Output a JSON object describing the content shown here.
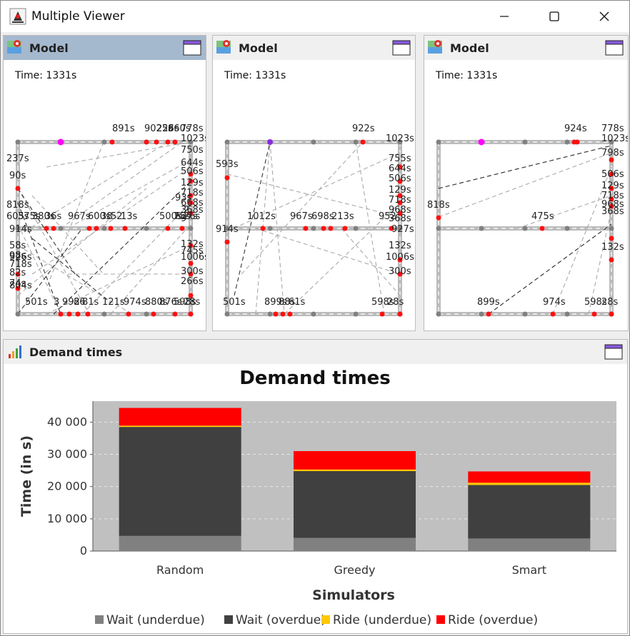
{
  "window": {
    "title": "Multiple Viewer",
    "icon": "java-duke-icon",
    "controls": [
      "minimize-icon",
      "maximize-icon",
      "close-icon"
    ]
  },
  "model_frames": [
    {
      "title": "Model",
      "time": "Time: 1331s",
      "active": true,
      "labels": [
        "891s",
        "9025s",
        "226s",
        "860s",
        "778s",
        "1023s",
        "237s",
        "90s",
        "818s",
        "605s",
        "375s",
        "380s",
        "36s",
        "967s",
        "600s",
        "38",
        "52",
        "13s",
        "500s",
        "75s",
        "26s",
        "93s",
        "627s",
        "914s",
        "58s",
        "98s",
        "926s",
        "718s",
        "82s",
        "74s",
        "804s",
        "750s",
        "644s",
        "506s",
        "129s",
        "718s",
        "668s",
        "368s",
        "9",
        "2",
        "132s",
        "745s",
        "1006s",
        "300s",
        "266s",
        "501s",
        "3",
        "992",
        "86",
        "81s",
        "121s",
        "974s",
        "880s",
        "876s",
        "598s",
        "28s"
      ]
    },
    {
      "title": "Model",
      "time": "Time: 1331s",
      "active": false,
      "labels": [
        "922s",
        "1023s",
        "593s",
        "755s",
        "644s",
        "506s",
        "129s",
        "718s",
        "968s",
        "368s",
        "1012s",
        "967s",
        "698s",
        "213s",
        "927s",
        "914s",
        "132s",
        "1006s",
        "300s",
        "501s",
        "899s",
        "88s",
        "61s",
        "598s",
        "28s",
        "952"
      ]
    },
    {
      "title": "Model",
      "time": "Time: 1331s",
      "active": false,
      "labels": [
        "924s",
        "778s",
        "1023s",
        "798s",
        "506s",
        "129s",
        "718s",
        "968s",
        "368s",
        "818s",
        "475s",
        "132s",
        "899s",
        "974s",
        "598s",
        "28s"
      ]
    }
  ],
  "chart_frame": {
    "title": "Demand times",
    "icon": "bar-chart-icon"
  },
  "colors": {
    "wait_underdue": "#808080",
    "wait_overdue": "#404040",
    "ride_underdue": "#ffc800",
    "ride_overdue": "#ff0000",
    "plot_bg": "#c0c0c0",
    "frame_active": "#a5b9ce"
  },
  "chart_data": {
    "type": "bar",
    "stacked": true,
    "title": "Demand times",
    "xlabel": "Simulators",
    "ylabel": "Time (in s)",
    "categories": [
      "Random",
      "Greedy",
      "Smart"
    ],
    "ylim": [
      0,
      46500
    ],
    "yticks": [
      0,
      10000,
      20000,
      30000,
      40000
    ],
    "ytick_labels": [
      "0",
      "10 000",
      "20 000",
      "30 000",
      "40 000"
    ],
    "series": [
      {
        "name": "Wait (underdue)",
        "color": "#808080",
        "values": [
          4700,
          4100,
          3900
        ]
      },
      {
        "name": "Wait (overdue)",
        "color": "#404040",
        "values": [
          33800,
          20700,
          16600
        ]
      },
      {
        "name": "Ride (underdue)",
        "color": "#ffc800",
        "values": [
          400,
          500,
          700
        ]
      },
      {
        "name": "Ride (overdue)",
        "color": "#ff0000",
        "values": [
          5500,
          5700,
          3500
        ]
      }
    ],
    "grid": true,
    "legend": "bottom"
  }
}
